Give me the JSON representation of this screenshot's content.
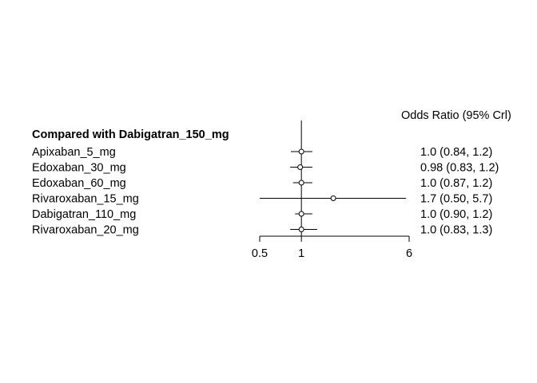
{
  "chart_data": {
    "type": "forest",
    "header": "Odds Ratio (95% Crl)",
    "group_title": "Compared with Dabigatran_150_mg",
    "reference_value": 1,
    "scale": "log",
    "xlim": [
      0.5,
      6
    ],
    "x_ticks": [
      0.5,
      1,
      6
    ],
    "x_tick_labels": [
      "0.5",
      "1",
      "6"
    ],
    "rows": [
      {
        "label": "Apixaban_5_mg",
        "or": 1.0,
        "lo": 0.84,
        "hi": 1.2,
        "ci_text": "1.0 (0.84, 1.2)"
      },
      {
        "label": "Edoxaban_30_mg",
        "or": 0.98,
        "lo": 0.83,
        "hi": 1.2,
        "ci_text": "0.98 (0.83, 1.2)"
      },
      {
        "label": "Edoxaban_60_mg",
        "or": 1.0,
        "lo": 0.87,
        "hi": 1.2,
        "ci_text": "1.0 (0.87, 1.2)"
      },
      {
        "label": "Rivaroxaban_15_mg",
        "or": 1.7,
        "lo": 0.5,
        "hi": 5.7,
        "ci_text": "1.7 (0.50, 5.7)"
      },
      {
        "label": "Dabigatran_110_mg",
        "or": 1.0,
        "lo": 0.9,
        "hi": 1.2,
        "ci_text": "1.0 (0.90, 1.2)"
      },
      {
        "label": "Rivaroxaban_20_mg",
        "or": 1.0,
        "lo": 0.83,
        "hi": 1.3,
        "ci_text": "1.0 (0.83, 1.3)"
      }
    ]
  }
}
